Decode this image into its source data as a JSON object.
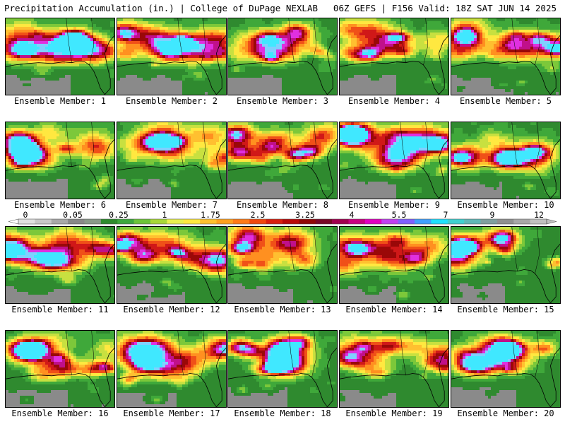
{
  "header": {
    "left": "Precipitation Accumulation (in.) | College of DuPage NEXLAB",
    "right": "06Z GEFS | F156 Valid: 18Z SAT JUN 14 2025"
  },
  "colorbar": {
    "tick_labels": [
      "0",
      "0.05",
      "0.25",
      "1",
      "1.75",
      "2.5",
      "3.25",
      "4",
      "5.5",
      "7",
      "9",
      "12"
    ],
    "colors": [
      "#e0e0e0",
      "#c8c8c8",
      "#a8a8a8",
      "#888888",
      "#8a9a8a",
      "#2e8b2e",
      "#3ea83e",
      "#6dc43a",
      "#a8d838",
      "#e8f050",
      "#ffe840",
      "#ffc030",
      "#ffa020",
      "#ff7a18",
      "#f04810",
      "#d82010",
      "#b80a0a",
      "#900808",
      "#780828",
      "#a00050",
      "#c80080",
      "#e000c0",
      "#c040f0",
      "#8060ff",
      "#40a0ff",
      "#20e0ff",
      "#40d0d0",
      "#60b8b8",
      "#80a0a0",
      "#909090",
      "#a8a8a8",
      "#c0c0c0"
    ]
  },
  "panels": [
    {
      "label": "Ensemble Member: 1"
    },
    {
      "label": "Ensemble Member: 2"
    },
    {
      "label": "Ensemble Member: 3"
    },
    {
      "label": "Ensemble Member: 4"
    },
    {
      "label": "Ensemble Member: 5"
    },
    {
      "label": "Ensemble Member: 6"
    },
    {
      "label": "Ensemble Member: 7"
    },
    {
      "label": "Ensemble Member: 8"
    },
    {
      "label": "Ensemble Member: 9"
    },
    {
      "label": "Ensemble Member: 10"
    },
    {
      "label": "Ensemble Member: 11"
    },
    {
      "label": "Ensemble Member: 12"
    },
    {
      "label": "Ensemble Member: 13"
    },
    {
      "label": "Ensemble Member: 14"
    },
    {
      "label": "Ensemble Member: 15"
    },
    {
      "label": "Ensemble Member: 16"
    },
    {
      "label": "Ensemble Member: 17"
    },
    {
      "label": "Ensemble Member: 18"
    },
    {
      "label": "Ensemble Member: 19"
    },
    {
      "label": "Ensemble Member: 20"
    }
  ]
}
